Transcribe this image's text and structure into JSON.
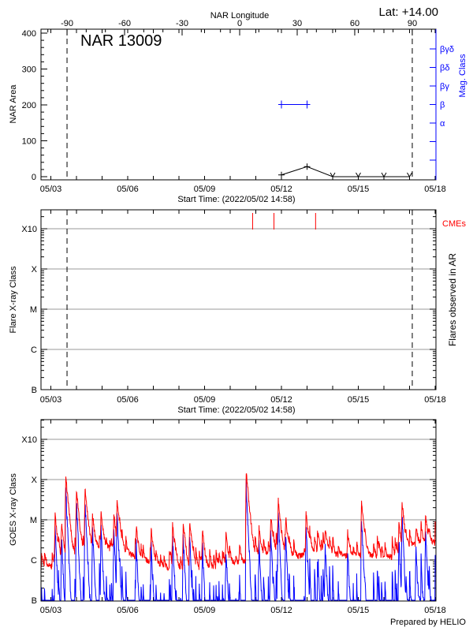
{
  "chart_data": [
    {
      "type": "line",
      "title": "NAR 13009",
      "latitude_label": "Lat: +14.00",
      "top_axis_label": "NAR Longitude",
      "top_axis_ticks": [
        "-90",
        "-60",
        "-30",
        "0",
        "30",
        "60",
        "90"
      ],
      "xlabel": "Start Time: (2022/05/02 14:58)",
      "x_ticks": [
        "05/03",
        "05/06",
        "05/09",
        "05/12",
        "05/15",
        "05/18"
      ],
      "ylabel": "NAR Area",
      "y_ticks": [
        "400",
        "300",
        "200",
        "100",
        "0"
      ],
      "ylim": [
        0,
        400
      ],
      "y2label": "Mag. Class",
      "y2_ticks": [
        "α",
        "β",
        "βγ",
        "βδ",
        "βγδ"
      ],
      "limb_lines_longitude": [
        -90,
        90
      ],
      "series": [
        {
          "color": "#000000",
          "points": [
            [
              "05/12 00:00",
              5
            ],
            [
              "05/13 00:00",
              28
            ],
            [
              "05/14 00:00",
              0
            ],
            [
              "05/15 00:00",
              0
            ],
            [
              "05/16 00:00",
              0
            ],
            [
              "05/17 00:00",
              0
            ]
          ]
        },
        {
          "color": "#0000ff",
          "axis": "y2",
          "points": [
            [
              "05/12 00:00",
              "β"
            ],
            [
              "05/13 00:00",
              "β"
            ]
          ]
        }
      ]
    },
    {
      "type": "scatter",
      "xlabel": "Start Time: (2022/05/02 14:58)",
      "x_ticks": [
        "05/03",
        "05/06",
        "05/09",
        "05/12",
        "05/15",
        "05/18"
      ],
      "ylabel": "Flare X-ray Class",
      "y_ticks": [
        "X10",
        "X",
        "M",
        "C",
        "B"
      ],
      "y_scale": "log",
      "grid": true,
      "y2label": "Flares observed in AR",
      "cme_label": "CMEs",
      "cme_color": "#ff0000",
      "cmes": [
        "05/10 21:00",
        "05/11 17:00",
        "05/13 08:00"
      ],
      "flares": []
    },
    {
      "type": "line",
      "x_ticks": [
        "05/03",
        "05/06",
        "05/09",
        "05/12",
        "05/15",
        "05/18"
      ],
      "ylabel": "GOES X-ray Class",
      "y_ticks": [
        "X10",
        "X",
        "M",
        "C",
        "B"
      ],
      "y_scale": "log",
      "grid": true,
      "credit": "Prepared by HELIO",
      "series": [
        {
          "color": "#ff0000",
          "background": [
            [
              "05/02 15:00",
              8e-07
            ],
            [
              "05/03 00:00",
              7e-07
            ],
            [
              "05/03 12:00",
              9e-07
            ],
            [
              "05/04 00:00",
              1.3e-06
            ],
            [
              "05/04 12:00",
              1.8e-06
            ],
            [
              "05/05 00:00",
              2e-06
            ],
            [
              "05/05 12:00",
              1.8e-06
            ],
            [
              "05/06 00:00",
              1.5e-06
            ],
            [
              "05/06 12:00",
              1.1e-06
            ],
            [
              "05/07 00:00",
              8e-07
            ],
            [
              "05/07 12:00",
              6.5e-07
            ],
            [
              "05/08 00:00",
              6e-07
            ],
            [
              "05/08 12:00",
              6e-07
            ],
            [
              "05/09 00:00",
              6e-07
            ],
            [
              "05/09 12:00",
              6e-07
            ],
            [
              "05/10 00:00",
              8e-07
            ],
            [
              "05/10 12:00",
              9e-07
            ],
            [
              "05/11 00:00",
              1.3e-06
            ],
            [
              "05/11 12:00",
              1.5e-06
            ],
            [
              "05/12 00:00",
              1.6e-06
            ],
            [
              "05/12 12:00",
              1.2e-06
            ],
            [
              "05/13 00:00",
              1.4e-06
            ],
            [
              "05/13 12:00",
              1.6e-06
            ],
            [
              "05/14 00:00",
              1.4e-06
            ],
            [
              "05/14 12:00",
              1.3e-06
            ],
            [
              "05/15 00:00",
              1.3e-06
            ],
            [
              "05/15 12:00",
              1.3e-06
            ],
            [
              "05/16 00:00",
              1.1e-06
            ],
            [
              "05/16 12:00",
              1.3e-06
            ],
            [
              "05/17 00:00",
              2.3e-06
            ],
            [
              "05/17 12:00",
              2.8e-06
            ],
            [
              "05/18 00:00",
              2.7e-06
            ]
          ],
          "flares": [
            [
              "05/03 14:00",
              0.00012
            ],
            [
              "05/03 04:00",
              1.3e-05
            ],
            [
              "05/03 10:00",
              7e-06
            ],
            [
              "05/04 00:00",
              5.6e-05
            ],
            [
              "05/04 08:00",
              6e-05
            ],
            [
              "05/04 15:00",
              1.1e-05
            ],
            [
              "05/04 23:00",
              1.2e-05
            ],
            [
              "05/05 14:00",
              3e-05
            ],
            [
              "05/05 11:00",
              1e-05
            ],
            [
              "05/06 08:00",
              5e-06
            ],
            [
              "05/06 22:00",
              4.5e-06
            ],
            [
              "05/07 18:00",
              7e-06
            ],
            [
              "05/08 04:00",
              8e-06
            ],
            [
              "05/08 10:00",
              8.5e-06
            ],
            [
              "05/08 22:00",
              5e-06
            ],
            [
              "05/09 20:00",
              4e-06
            ],
            [
              "05/10 15:00",
              0.00016
            ],
            [
              "05/11 03:00",
              5e-06
            ],
            [
              "05/11 14:00",
              1e-05
            ],
            [
              "05/11 21:00",
              2.8e-05
            ],
            [
              "05/12 04:00",
              8e-06
            ],
            [
              "05/12 23:00",
              1.4e-05
            ],
            [
              "05/13 17:00",
              4.5e-06
            ],
            [
              "05/14 14:00",
              4e-06
            ],
            [
              "05/15 03:00",
              2.5e-05
            ],
            [
              "05/16 14:00",
              7e-06
            ],
            [
              "05/16 17:00",
              2.6e-05
            ],
            [
              "05/17 06:00",
              4e-06
            ],
            [
              "05/17 15:00",
              1e-05
            ]
          ]
        },
        {
          "color": "#0000ff",
          "derived_from": "short channel"
        }
      ]
    }
  ]
}
